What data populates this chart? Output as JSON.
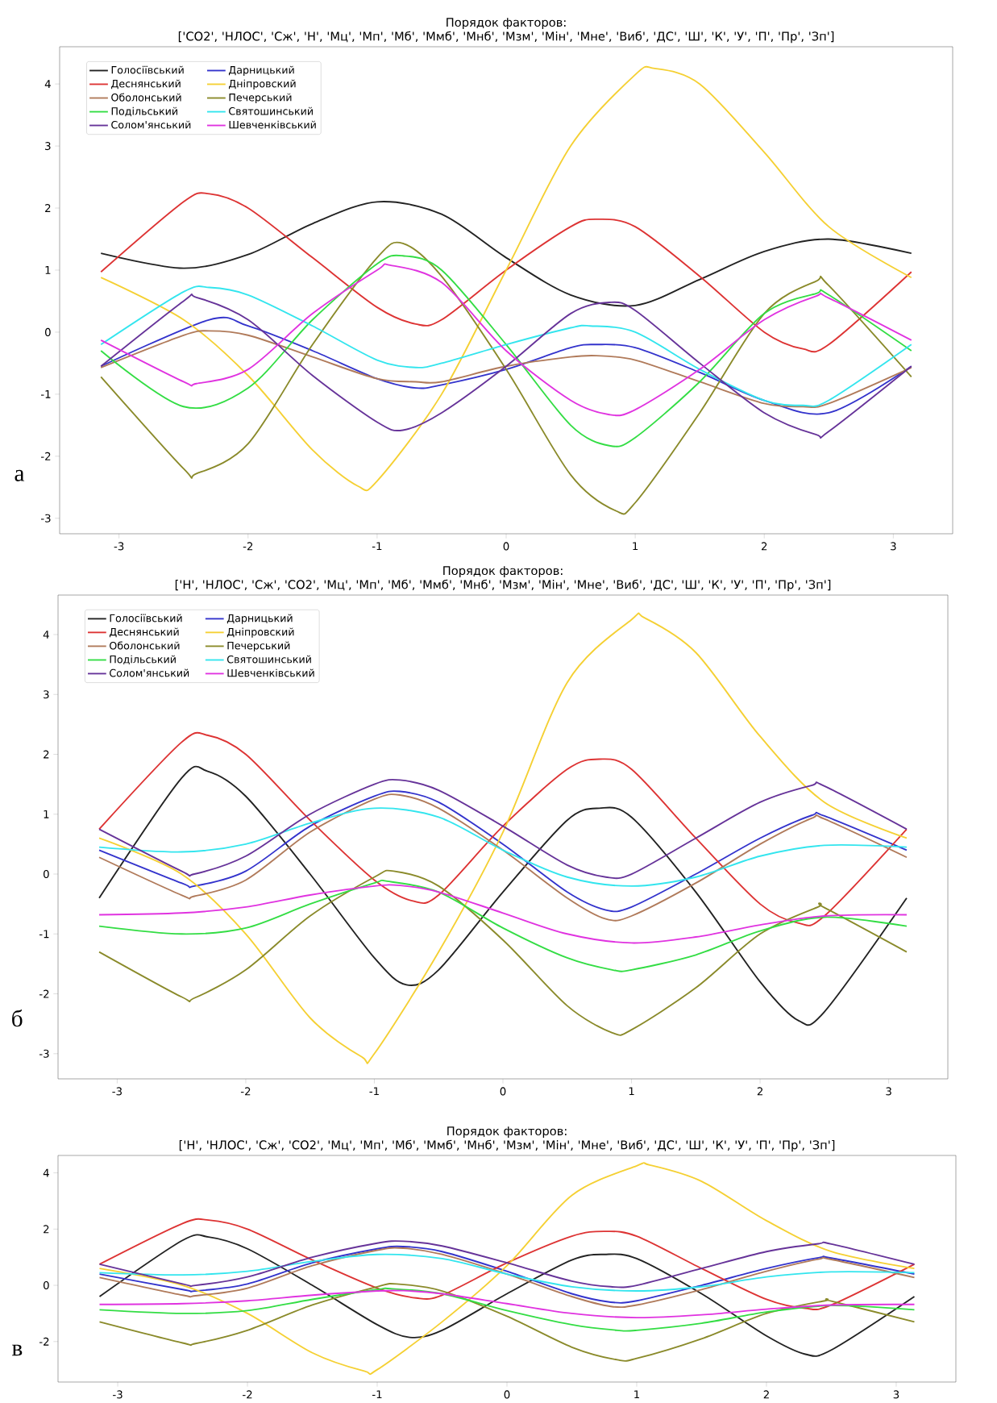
{
  "chart_data": [
    {
      "type": "line",
      "title": "Порядок факторов:",
      "subtitle": "['СО2', 'НЛОС', 'Сж', 'Н', 'Мц', 'Мп', 'Мб', 'Ммб', 'Мнб', 'Мзм', 'Мін', 'Мне', 'Виб', 'ДС', 'Ш', 'К', 'У', 'П', 'Пр', 'Зп']",
      "annotations": [
        "а"
      ],
      "xlim": [
        -3.46,
        3.46
      ],
      "ylim": [
        -3.25,
        4.6
      ],
      "xticks": [
        -3,
        -2,
        -1,
        0,
        1,
        2,
        3
      ],
      "yticks": [
        -3,
        -2,
        -1,
        0,
        1,
        2,
        3,
        4
      ],
      "legend": "top left",
      "marker": "none",
      "line_style": "solid",
      "series": [
        {
          "name": "Голосіївський",
          "color": "#222222",
          "x": [
            -3.14,
            -2.5,
            -2,
            -1.5,
            -1,
            -0.5,
            0,
            0.5,
            1,
            1.5,
            2,
            2.5,
            3.14
          ],
          "values": [
            1.27,
            1.03,
            1.25,
            1.75,
            2.1,
            1.9,
            1.2,
            0.6,
            0.43,
            0.85,
            1.3,
            1.5,
            1.27
          ]
        },
        {
          "name": "Дарницький",
          "color": "#3333cc",
          "x": [
            -3.14,
            -2.3,
            -2,
            -1.5,
            -1,
            -0.7,
            -0.5,
            0,
            0.5,
            0.7,
            1,
            1.5,
            2,
            2.5,
            3.14
          ],
          "values": [
            -0.55,
            0.2,
            0.1,
            -0.3,
            -0.75,
            -0.9,
            -0.85,
            -0.6,
            -0.25,
            -0.2,
            -0.25,
            -0.65,
            -1.1,
            -1.3,
            -0.55
          ]
        },
        {
          "name": "Деснянський",
          "color": "#dd3333",
          "x": [
            -3.14,
            -2.5,
            -2.3,
            -2,
            -1.5,
            -1,
            -0.7,
            -0.5,
            0,
            0.5,
            0.7,
            1,
            1.5,
            2,
            2.3,
            2.5,
            3.14
          ],
          "values": [
            0.97,
            2.1,
            2.23,
            2.0,
            1.2,
            0.4,
            0.13,
            0.2,
            1.0,
            1.7,
            1.82,
            1.7,
            0.9,
            0.0,
            -0.27,
            -0.2,
            0.97
          ]
        },
        {
          "name": "Дніпровский",
          "color": "#f5d033",
          "x": [
            -3.14,
            -2.5,
            -2,
            -1.5,
            -1.15,
            -1,
            -0.5,
            0,
            0.5,
            1,
            1.15,
            1.5,
            2,
            2.5,
            3.14
          ],
          "values": [
            0.88,
            0.2,
            -0.7,
            -1.9,
            -2.48,
            -2.4,
            -1.0,
            1.0,
            3.0,
            4.15,
            4.25,
            4.0,
            2.9,
            1.7,
            0.88
          ]
        },
        {
          "name": "Оболонський",
          "color": "#b07a5a",
          "x": [
            -3.14,
            -2.5,
            -2.3,
            -2,
            -1.5,
            -1,
            -0.7,
            -0.5,
            0,
            0.5,
            0.7,
            1,
            1.5,
            2,
            2.3,
            2.5,
            3.14
          ],
          "values": [
            -0.57,
            -0.05,
            0.02,
            -0.05,
            -0.4,
            -0.75,
            -0.8,
            -0.8,
            -0.55,
            -0.4,
            -0.38,
            -0.45,
            -0.8,
            -1.15,
            -1.2,
            -1.15,
            -0.57
          ]
        },
        {
          "name": "Печерський",
          "color": "#8a8a2a",
          "x": [
            -3.14,
            -2.5,
            -2.4,
            -2,
            -1.5,
            -1,
            -0.8,
            -0.5,
            0,
            0.5,
            0.85,
            1,
            1.5,
            2,
            2.4,
            2.5,
            3.14
          ],
          "values": [
            -0.72,
            -2.2,
            -2.28,
            -1.8,
            -0.2,
            1.2,
            1.43,
            0.9,
            -0.6,
            -2.3,
            -2.88,
            -2.75,
            -1.3,
            0.3,
            0.82,
            0.75,
            -0.72
          ]
        },
        {
          "name": "Подільський",
          "color": "#33dd44",
          "x": [
            -3.14,
            -2.5,
            -2,
            -1.5,
            -1,
            -0.8,
            -0.5,
            0,
            0.5,
            0.8,
            1,
            1.5,
            2,
            2.4,
            2.5,
            3.14
          ],
          "values": [
            -0.3,
            -1.2,
            -0.9,
            0.2,
            1.1,
            1.23,
            1.0,
            -0.2,
            -1.5,
            -1.83,
            -1.7,
            -0.8,
            0.3,
            0.62,
            0.6,
            -0.3
          ]
        },
        {
          "name": "Святошинський",
          "color": "#33e5ee",
          "x": [
            -3.14,
            -2.5,
            -2.3,
            -2,
            -1.5,
            -1,
            -0.7,
            -0.5,
            0,
            0.5,
            0.65,
            1,
            1.5,
            2,
            2.3,
            2.5,
            3.14
          ],
          "values": [
            -0.2,
            0.65,
            0.72,
            0.6,
            0.1,
            -0.45,
            -0.57,
            -0.5,
            -0.2,
            0.07,
            0.1,
            0.0,
            -0.6,
            -1.1,
            -1.18,
            -1.1,
            -0.2
          ]
        },
        {
          "name": "Солом'янський",
          "color": "#663399",
          "x": [
            -3.14,
            -2.5,
            -2.4,
            -2,
            -1.5,
            -1,
            -0.8,
            -0.5,
            0,
            0.5,
            0.8,
            1,
            1.5,
            2,
            2.4,
            2.5,
            3.14
          ],
          "values": [
            -0.55,
            0.5,
            0.56,
            0.2,
            -0.7,
            -1.45,
            -1.58,
            -1.3,
            -0.55,
            0.3,
            0.48,
            0.35,
            -0.5,
            -1.3,
            -1.65,
            -1.6,
            -0.55
          ]
        },
        {
          "name": "Шевченківський",
          "color": "#e033e0",
          "x": [
            -3.14,
            -2.5,
            -2.4,
            -2,
            -1.5,
            -1,
            -0.9,
            -0.5,
            0,
            0.5,
            0.8,
            1,
            1.5,
            2,
            2.4,
            2.5,
            3.14
          ],
          "values": [
            -0.13,
            -0.8,
            -0.83,
            -0.6,
            0.3,
            1.0,
            1.08,
            0.8,
            -0.3,
            -1.1,
            -1.33,
            -1.25,
            -0.6,
            0.2,
            0.58,
            0.55,
            -0.13
          ]
        }
      ]
    },
    {
      "type": "line",
      "title": "Порядок факторов:",
      "subtitle": "['Н', 'НЛОС', 'Сж', 'СО2', 'Мц', 'Мп', 'Мб', 'Ммб', 'Мнб', 'Мзм', 'Мін', 'Мне', 'Виб', 'ДС', 'Ш', 'К', 'У', 'П', 'Пр', 'Зп']",
      "annotations": [
        "б"
      ],
      "xlim": [
        -3.46,
        3.46
      ],
      "ylim": [
        -3.42,
        4.66
      ],
      "xticks": [
        -3,
        -2,
        -1,
        0,
        1,
        2,
        3
      ],
      "yticks": [
        -3,
        -2,
        -1,
        0,
        1,
        2,
        3,
        4
      ],
      "legend": "top left",
      "marker": "none",
      "line_style": "solid",
      "series": [
        {
          "name": "Голосіївський",
          "color": "#222222",
          "x": [
            -3.14,
            -2.5,
            -2.3,
            -2,
            -1.5,
            -1,
            -0.75,
            -0.5,
            0,
            0.5,
            0.75,
            1,
            1.5,
            2,
            2.3,
            2.5,
            3.14
          ],
          "values": [
            -0.4,
            1.6,
            1.72,
            1.3,
            0.0,
            -1.4,
            -1.85,
            -1.6,
            -0.3,
            0.9,
            1.1,
            0.95,
            -0.3,
            -1.8,
            -2.45,
            -2.3,
            -0.4
          ]
        },
        {
          "name": "Дарницький",
          "color": "#3333cc",
          "x": [
            -3.14,
            -2.5,
            -2.4,
            -2,
            -1.5,
            -1,
            -0.8,
            -0.5,
            0,
            0.5,
            0.8,
            1,
            1.5,
            2,
            2.4,
            2.5,
            3.14
          ],
          "values": [
            0.4,
            -0.15,
            -0.2,
            0.05,
            0.8,
            1.3,
            1.38,
            1.2,
            0.5,
            -0.3,
            -0.6,
            -0.55,
            0.0,
            0.6,
            0.98,
            0.97,
            0.4
          ]
        },
        {
          "name": "Деснянський",
          "color": "#dd3333",
          "x": [
            -3.14,
            -2.5,
            -2.3,
            -2,
            -1.5,
            -1,
            -0.7,
            -0.5,
            0,
            0.5,
            0.75,
            1,
            1.5,
            2,
            2.3,
            2.5,
            3.14
          ],
          "values": [
            0.75,
            2.2,
            2.32,
            2.0,
            0.9,
            -0.1,
            -0.45,
            -0.35,
            0.8,
            1.75,
            1.92,
            1.75,
            0.6,
            -0.5,
            -0.82,
            -0.7,
            0.75
          ]
        },
        {
          "name": "Дніпровский",
          "color": "#f5d033",
          "x": [
            -3.14,
            -2.5,
            -2,
            -1.5,
            -1.1,
            -1,
            -0.5,
            0,
            0.5,
            1,
            1.1,
            1.5,
            2,
            2.5,
            3.14
          ],
          "values": [
            0.6,
            0.0,
            -1.0,
            -2.4,
            -3.05,
            -3.0,
            -1.3,
            0.7,
            3.2,
            4.25,
            4.28,
            3.7,
            2.3,
            1.2,
            0.6
          ]
        },
        {
          "name": "Оболонський",
          "color": "#b07a5a",
          "x": [
            -3.14,
            -2.5,
            -2.4,
            -2,
            -1.5,
            -1,
            -0.8,
            -0.5,
            0,
            0.5,
            0.8,
            1,
            1.5,
            2,
            2.4,
            2.5,
            3.14
          ],
          "values": [
            0.28,
            -0.35,
            -0.37,
            -0.1,
            0.7,
            1.25,
            1.32,
            1.1,
            0.4,
            -0.4,
            -0.75,
            -0.7,
            -0.15,
            0.5,
            0.93,
            0.92,
            0.28
          ]
        },
        {
          "name": "Печерський",
          "color": "#8a8a2a",
          "x": [
            -3.14,
            -2.5,
            -2.4,
            -2,
            -1.5,
            -1,
            -0.85,
            -0.5,
            0,
            0.5,
            0.85,
            1,
            1.5,
            2,
            2.45,
            2.5,
            3.14
          ],
          "values": [
            -1.3,
            -2.05,
            -2.07,
            -1.6,
            -0.7,
            -0.05,
            0.05,
            -0.2,
            -1.1,
            -2.2,
            -2.65,
            -2.6,
            -1.9,
            -1.0,
            -0.55,
            -0.56,
            -1.3
          ]
        },
        {
          "name": "Подільський",
          "color": "#33dd44",
          "x": [
            -3.14,
            -2.5,
            -2,
            -1.5,
            -1,
            -0.9,
            -0.5,
            0,
            0.5,
            0.85,
            1,
            1.5,
            2,
            2.5,
            3.14
          ],
          "values": [
            -0.87,
            -1.0,
            -0.9,
            -0.5,
            -0.15,
            -0.12,
            -0.3,
            -0.9,
            -1.4,
            -1.6,
            -1.6,
            -1.35,
            -0.95,
            -0.72,
            -0.87
          ]
        },
        {
          "name": "Святошинський",
          "color": "#33e5ee",
          "x": [
            -3.14,
            -2.5,
            -2,
            -1.5,
            -1,
            -0.5,
            0,
            0.5,
            1,
            1.5,
            2,
            2.5,
            3.14
          ],
          "values": [
            0.45,
            0.37,
            0.5,
            0.85,
            1.1,
            0.95,
            0.4,
            -0.05,
            -0.2,
            -0.05,
            0.3,
            0.48,
            0.45
          ]
        },
        {
          "name": "Солом'янський",
          "color": "#663399",
          "x": [
            -3.14,
            -2.5,
            -2.4,
            -2,
            -1.5,
            -1,
            -0.8,
            -0.5,
            0,
            0.5,
            0.8,
            1,
            1.5,
            2,
            2.4,
            2.5,
            3.14
          ],
          "values": [
            0.75,
            0.05,
            0.0,
            0.3,
            1.0,
            1.5,
            1.57,
            1.4,
            0.8,
            0.15,
            -0.05,
            0.0,
            0.6,
            1.2,
            1.48,
            1.47,
            0.75
          ]
        },
        {
          "name": "Шевченківський",
          "color": "#e033e0",
          "x": [
            -3.14,
            -2.5,
            -2,
            -1.5,
            -1,
            -0.8,
            -0.5,
            0,
            0.5,
            1,
            1.5,
            2,
            2.5,
            3.14
          ],
          "values": [
            -0.68,
            -0.65,
            -0.55,
            -0.35,
            -0.2,
            -0.19,
            -0.3,
            -0.65,
            -1.0,
            -1.15,
            -1.05,
            -0.85,
            -0.7,
            -0.68
          ]
        }
      ]
    },
    {
      "type": "line",
      "title": "Порядок факторов:",
      "subtitle": "['Н', 'НЛОС', 'Сж', 'СО2', 'Мц', 'Мп', 'Мб', 'Ммб', 'Мнб', 'Мзм', 'Мін', 'Мне', 'Виб', 'ДС', 'Ш', 'К', 'У', 'П', 'Пр', 'Зп']",
      "annotations": [
        "в"
      ],
      "xlim": [
        -3.46,
        3.46
      ],
      "ylim": [
        -3.44,
        4.62
      ],
      "xticks": [
        -3,
        -2,
        -1,
        0,
        1,
        2,
        3
      ],
      "yticks": [
        -2,
        0,
        2,
        4
      ],
      "marker": "none",
      "line_style": "solid",
      "series": [
        {
          "color": "#222222",
          "x": [
            -3.14,
            -2.5,
            -2.3,
            -2,
            -1.5,
            -1,
            -0.75,
            -0.5,
            0,
            0.5,
            0.75,
            1,
            1.5,
            2,
            2.3,
            2.5,
            3.14
          ],
          "values": [
            -0.4,
            1.6,
            1.72,
            1.3,
            0.0,
            -1.4,
            -1.85,
            -1.6,
            -0.3,
            0.9,
            1.1,
            0.95,
            -0.3,
            -1.8,
            -2.45,
            -2.3,
            -0.4
          ]
        },
        {
          "color": "#3333cc",
          "x": [
            -3.14,
            -2.5,
            -2.4,
            -2,
            -1.5,
            -1,
            -0.8,
            -0.5,
            0,
            0.5,
            0.8,
            1,
            1.5,
            2,
            2.4,
            2.5,
            3.14
          ],
          "values": [
            0.4,
            -0.15,
            -0.2,
            0.05,
            0.8,
            1.3,
            1.38,
            1.2,
            0.5,
            -0.3,
            -0.6,
            -0.55,
            0.0,
            0.6,
            0.98,
            0.97,
            0.4
          ]
        },
        {
          "color": "#dd3333",
          "x": [
            -3.14,
            -2.5,
            -2.3,
            -2,
            -1.5,
            -1,
            -0.7,
            -0.5,
            0,
            0.5,
            0.75,
            1,
            1.5,
            2,
            2.3,
            2.5,
            3.14
          ],
          "values": [
            0.75,
            2.2,
            2.32,
            2.0,
            0.9,
            -0.1,
            -0.45,
            -0.35,
            0.8,
            1.75,
            1.92,
            1.75,
            0.6,
            -0.5,
            -0.82,
            -0.7,
            0.75
          ]
        },
        {
          "color": "#f5d033",
          "x": [
            -3.14,
            -2.5,
            -2,
            -1.5,
            -1.1,
            -1,
            -0.5,
            0,
            0.5,
            1,
            1.1,
            1.5,
            2,
            2.5,
            3.14
          ],
          "values": [
            0.6,
            0.0,
            -1.0,
            -2.4,
            -3.05,
            -3.0,
            -1.3,
            0.7,
            3.2,
            4.25,
            4.28,
            3.7,
            2.3,
            1.2,
            0.6
          ]
        },
        {
          "color": "#b07a5a",
          "x": [
            -3.14,
            -2.5,
            -2.4,
            -2,
            -1.5,
            -1,
            -0.8,
            -0.5,
            0,
            0.5,
            0.8,
            1,
            1.5,
            2,
            2.4,
            2.5,
            3.14
          ],
          "values": [
            0.28,
            -0.35,
            -0.37,
            -0.1,
            0.7,
            1.25,
            1.32,
            1.1,
            0.4,
            -0.4,
            -0.75,
            -0.7,
            -0.15,
            0.5,
            0.93,
            0.92,
            0.28
          ]
        },
        {
          "color": "#8a8a2a",
          "x": [
            -3.14,
            -2.5,
            -2.4,
            -2,
            -1.5,
            -1,
            -0.85,
            -0.5,
            0,
            0.5,
            0.85,
            1,
            1.5,
            2,
            2.45,
            2.5,
            3.14
          ],
          "values": [
            -1.3,
            -2.05,
            -2.07,
            -1.6,
            -0.7,
            -0.05,
            0.05,
            -0.2,
            -1.1,
            -2.2,
            -2.65,
            -2.6,
            -1.9,
            -1.0,
            -0.55,
            -0.56,
            -1.3
          ]
        },
        {
          "color": "#33dd44",
          "x": [
            -3.14,
            -2.5,
            -2,
            -1.5,
            -1,
            -0.9,
            -0.5,
            0,
            0.5,
            0.85,
            1,
            1.5,
            2,
            2.5,
            3.14
          ],
          "values": [
            -0.87,
            -1.0,
            -0.9,
            -0.5,
            -0.15,
            -0.12,
            -0.3,
            -0.9,
            -1.4,
            -1.6,
            -1.6,
            -1.35,
            -0.95,
            -0.72,
            -0.87
          ]
        },
        {
          "color": "#33e5ee",
          "x": [
            -3.14,
            -2.5,
            -2,
            -1.5,
            -1,
            -0.5,
            0,
            0.5,
            1,
            1.5,
            2,
            2.5,
            3.14
          ],
          "values": [
            0.45,
            0.37,
            0.5,
            0.85,
            1.1,
            0.95,
            0.4,
            -0.05,
            -0.2,
            -0.05,
            0.3,
            0.48,
            0.45
          ]
        },
        {
          "color": "#663399",
          "x": [
            -3.14,
            -2.5,
            -2.4,
            -2,
            -1.5,
            -1,
            -0.8,
            -0.5,
            0,
            0.5,
            0.8,
            1,
            1.5,
            2,
            2.4,
            2.5,
            3.14
          ],
          "values": [
            0.75,
            0.05,
            0.0,
            0.3,
            1.0,
            1.5,
            1.57,
            1.4,
            0.8,
            0.15,
            -0.05,
            0.0,
            0.6,
            1.2,
            1.48,
            1.47,
            0.75
          ]
        },
        {
          "color": "#e033e0",
          "x": [
            -3.14,
            -2.5,
            -2,
            -1.5,
            -1,
            -0.8,
            -0.5,
            0,
            0.5,
            1,
            1.5,
            2,
            2.5,
            3.14
          ],
          "values": [
            -0.68,
            -0.65,
            -0.55,
            -0.35,
            -0.2,
            -0.19,
            -0.3,
            -0.65,
            -1.0,
            -1.15,
            -1.05,
            -0.85,
            -0.7,
            -0.68
          ]
        }
      ]
    }
  ]
}
